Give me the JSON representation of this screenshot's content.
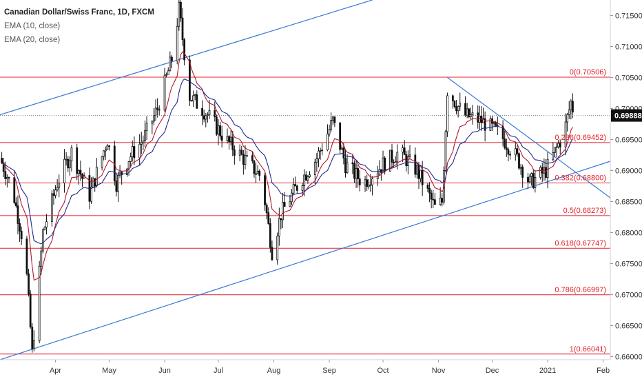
{
  "legend": {
    "title": "Canadian Dollar/Swiss Franc, 1D, FXCM",
    "ema10": "EMA (10, close)",
    "ema20": "EMA (20, close)"
  },
  "colors": {
    "fib": "#e0202a",
    "trend": "#3a78d8",
    "ema10": "#b0182a",
    "ema20": "#1f2a8a",
    "candle_up": "#ffffff",
    "candle_down": "#111111",
    "price_box": "#111111"
  },
  "chart_data": {
    "type": "candlestick",
    "ylim": [
      0.6595,
      0.7175
    ],
    "xlim": [
      "2020-03-01",
      "2021-02-05"
    ],
    "y_ticks": [
      0.66,
      0.665,
      0.67,
      0.675,
      0.68,
      0.685,
      0.69,
      0.695,
      0.7,
      0.705,
      0.71,
      0.715
    ],
    "y_tick_labels": [
      "0.66000",
      "0.66500",
      "0.67000",
      "0.67500",
      "0.68000",
      "0.68500",
      "0.69000",
      "0.69500",
      "0.70000",
      "0.70500",
      "0.71000",
      "0.71500"
    ],
    "x_ticks": [
      {
        "date": "2020-04-01",
        "label": "Apr"
      },
      {
        "date": "2020-05-01",
        "label": "May"
      },
      {
        "date": "2020-06-01",
        "label": "Jun"
      },
      {
        "date": "2020-07-01",
        "label": "Jul"
      },
      {
        "date": "2020-08-01",
        "label": "Aug"
      },
      {
        "date": "2020-09-01",
        "label": "Sep"
      },
      {
        "date": "2020-10-01",
        "label": "Oct"
      },
      {
        "date": "2020-11-01",
        "label": "Nov"
      },
      {
        "date": "2020-12-01",
        "label": "Dec"
      },
      {
        "date": "2021-01-01",
        "label": "2021"
      },
      {
        "date": "2021-02-01",
        "label": "Feb"
      }
    ],
    "last_price": {
      "value": 0.69888,
      "label": "0.69888"
    },
    "fib_levels": [
      {
        "level": "0",
        "value": 0.70506,
        "label": "0(0.70506)"
      },
      {
        "level": "0.236",
        "value": 0.69452,
        "label": "0.236(0.69452)"
      },
      {
        "level": "0.382",
        "value": 0.688,
        "label": "0.382(0.68800)"
      },
      {
        "level": "0.5",
        "value": 0.68273,
        "label": "0.5(0.68273)"
      },
      {
        "level": "0.618",
        "value": 0.67747,
        "label": "0.618(0.67747)"
      },
      {
        "level": "0.786",
        "value": 0.66997,
        "label": "0.786(0.66997)"
      },
      {
        "level": "1",
        "value": 0.66041,
        "label": "1(0.66041)"
      }
    ],
    "trendlines": [
      {
        "from": [
          "2020-03-01",
          0.699
        ],
        "to": [
          "2020-09-25",
          0.7175
        ]
      },
      {
        "from": [
          "2020-03-01",
          0.6595
        ],
        "to": [
          "2021-02-05",
          0.6915
        ]
      },
      {
        "from": [
          "2020-11-06",
          0.705
        ],
        "to": [
          "2021-02-05",
          0.6856
        ]
      }
    ],
    "anchors": [
      [
        "2020-03-01",
        0.692
      ],
      [
        "2020-03-08",
        0.687
      ],
      [
        "2020-03-15",
        0.677
      ],
      [
        "2020-03-19",
        0.6605
      ],
      [
        "2020-03-25",
        0.68
      ],
      [
        "2020-04-02",
        0.688
      ],
      [
        "2020-04-10",
        0.693
      ],
      [
        "2020-04-20",
        0.686
      ],
      [
        "2020-04-30",
        0.695
      ],
      [
        "2020-05-05",
        0.688
      ],
      [
        "2020-05-12",
        0.692
      ],
      [
        "2020-05-20",
        0.695
      ],
      [
        "2020-05-28",
        0.7
      ],
      [
        "2020-06-05",
        0.708
      ],
      [
        "2020-06-09",
        0.716
      ],
      [
        "2020-06-15",
        0.702
      ],
      [
        "2020-06-25",
        0.699
      ],
      [
        "2020-07-05",
        0.695
      ],
      [
        "2020-07-15",
        0.692
      ],
      [
        "2020-07-25",
        0.689
      ],
      [
        "2020-07-31",
        0.677
      ],
      [
        "2020-08-05",
        0.683
      ],
      [
        "2020-08-15",
        0.688
      ],
      [
        "2020-08-25",
        0.692
      ],
      [
        "2020-09-03",
        0.698
      ],
      [
        "2020-09-10",
        0.691
      ],
      [
        "2020-09-20",
        0.688
      ],
      [
        "2020-10-01",
        0.691
      ],
      [
        "2020-10-10",
        0.693
      ],
      [
        "2020-10-20",
        0.69
      ],
      [
        "2020-10-30",
        0.684
      ],
      [
        "2020-11-03",
        0.685
      ],
      [
        "2020-11-06",
        0.703
      ],
      [
        "2020-11-15",
        0.699
      ],
      [
        "2020-11-25",
        0.698
      ],
      [
        "2020-12-05",
        0.696
      ],
      [
        "2020-12-15",
        0.692
      ],
      [
        "2020-12-22",
        0.688
      ],
      [
        "2020-12-31",
        0.69
      ],
      [
        "2021-01-05",
        0.693
      ],
      [
        "2021-01-10",
        0.696
      ],
      [
        "2021-01-14",
        0.701
      ],
      [
        "2021-01-16",
        0.699
      ]
    ],
    "data_end": "2021-01-16",
    "candle_interval": "1D"
  }
}
